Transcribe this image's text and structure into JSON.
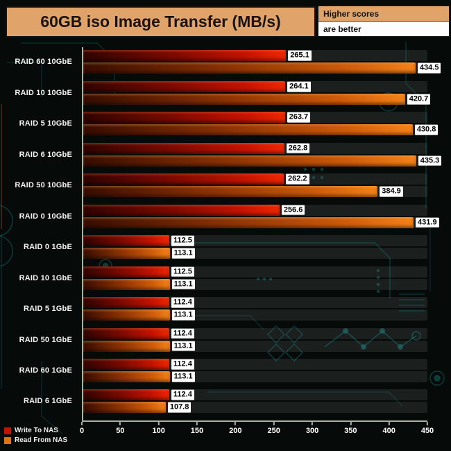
{
  "window": {
    "title": "60GB iso Image Transfer (MB/s)"
  },
  "note": {
    "line1": "Higher scores",
    "line2": "are better"
  },
  "legend": {
    "items": [
      {
        "label": "Write To NAS",
        "color": "#c41300"
      },
      {
        "label": "Read From NAS",
        "color": "#e0720f"
      }
    ]
  },
  "colors": {
    "title_bg": "#e0a369",
    "background": "#060b0a",
    "circuit": "#107070",
    "axis": "#a7b3a3",
    "write_bar": "#c41300",
    "read_bar": "#e0720f"
  },
  "chart_data": {
    "type": "bar",
    "orientation": "horizontal",
    "title": "60GB iso Image Transfer (MB/s)",
    "xlabel": "",
    "ylabel": "",
    "xlim": [
      0,
      450
    ],
    "xticks": [
      0,
      50,
      100,
      150,
      200,
      250,
      300,
      350,
      400,
      450
    ],
    "grid": false,
    "legend_position": "bottom-left",
    "categories": [
      "RAID 60 10GbE",
      "RAID 10 10GbE",
      "RAID 5 10GbE",
      "RAID 6 10GbE",
      "RAID 50 10GbE",
      "RAID 0 10GbE",
      "RAID 0 1GbE",
      "RAID 10 1GbE",
      "RAID 5 1GbE",
      "RAID 50 1GbE",
      "RAID 60 1GbE",
      "RAID 6 1GbE"
    ],
    "series": [
      {
        "name": "Write To NAS",
        "values": [
          265.1,
          264.1,
          263.7,
          262.8,
          262.2,
          256.6,
          112.5,
          112.5,
          112.4,
          112.4,
          112.4,
          112.4
        ]
      },
      {
        "name": "Read From NAS",
        "values": [
          434.5,
          420.7,
          430.8,
          435.3,
          384.9,
          431.9,
          113.1,
          113.1,
          113.1,
          113.1,
          113.1,
          107.8
        ]
      }
    ]
  }
}
